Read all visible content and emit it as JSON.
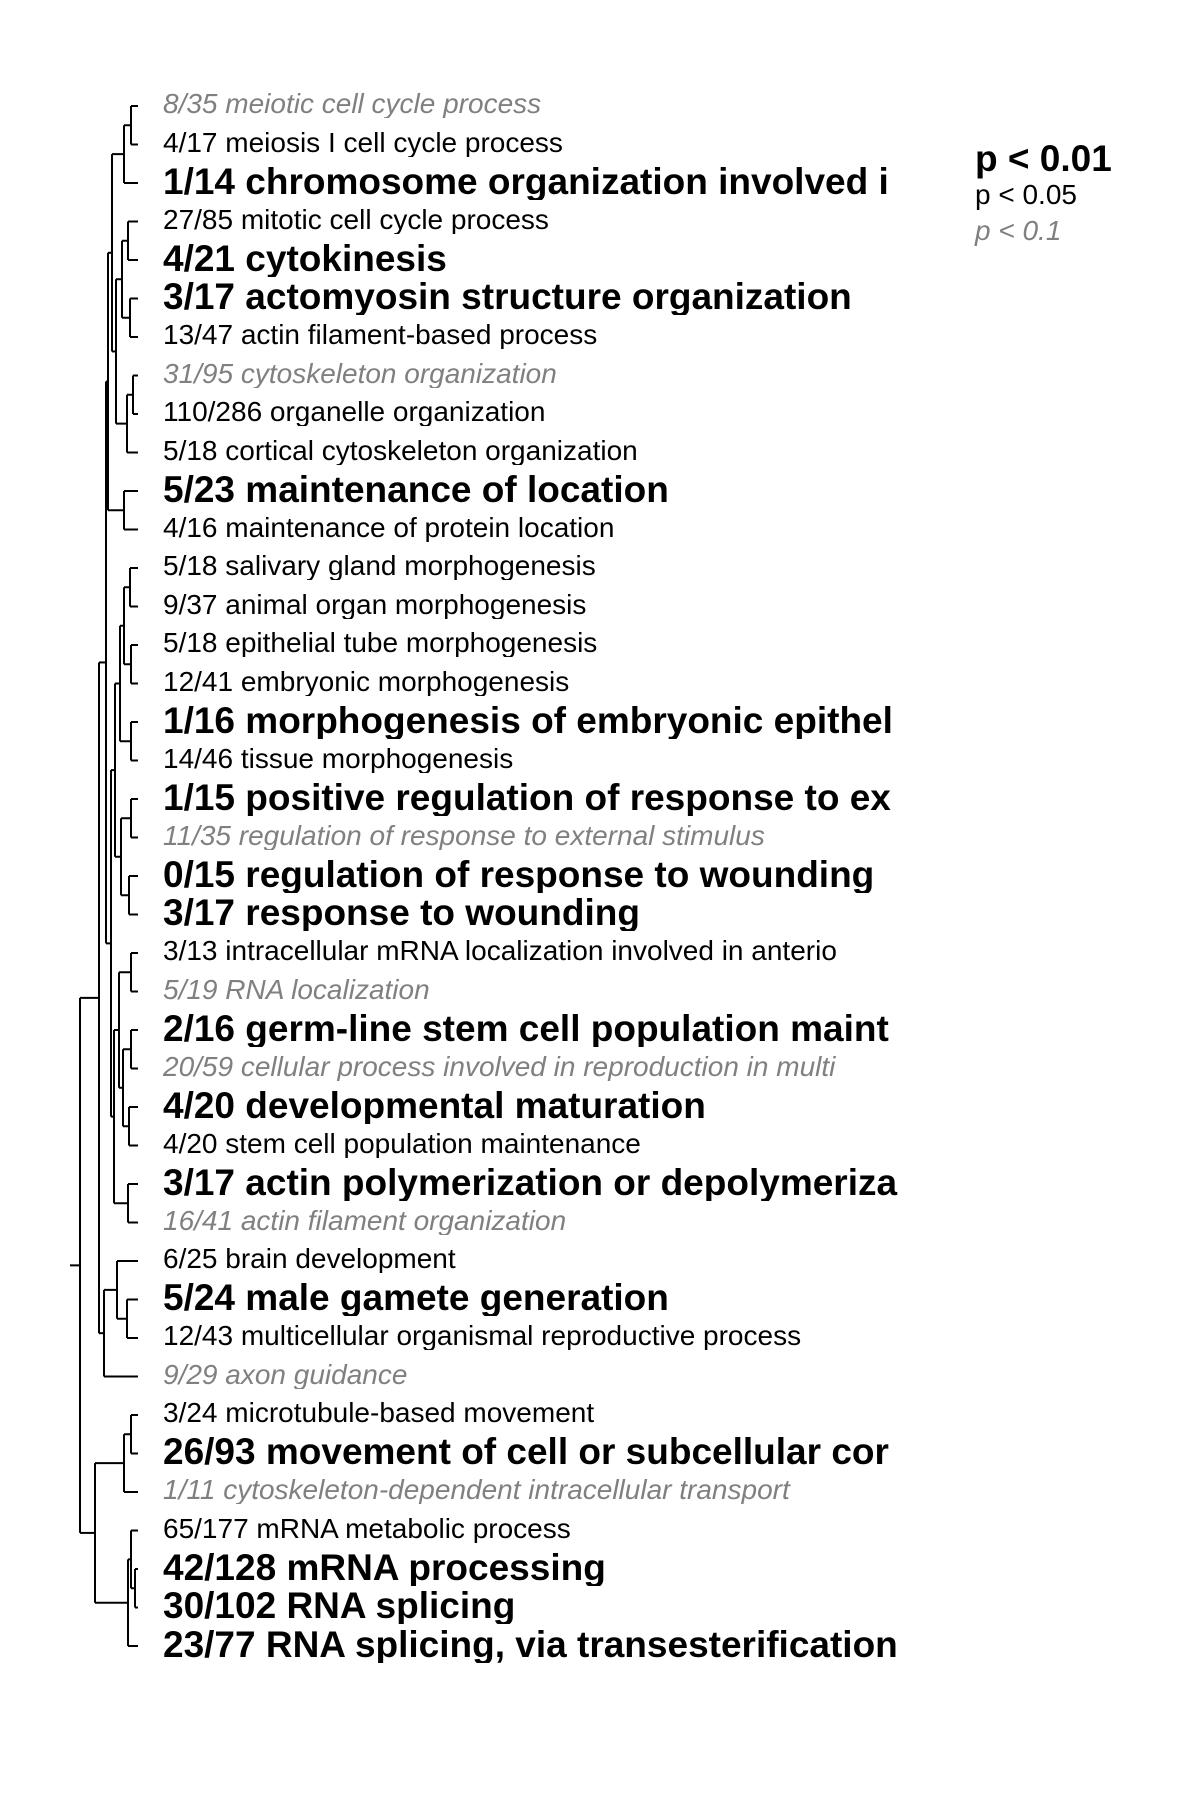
{
  "terms": [
    {
      "label": "8/35 meiotic cell cycle process",
      "sig": 3
    },
    {
      "label": "4/17 meiosis I cell cycle process",
      "sig": 2
    },
    {
      "label": "1/14 chromosome organization involved i",
      "sig": 1
    },
    {
      "label": "27/85 mitotic cell cycle process",
      "sig": 2
    },
    {
      "label": "4/21 cytokinesis",
      "sig": 1
    },
    {
      "label": "3/17 actomyosin structure organization",
      "sig": 1
    },
    {
      "label": "13/47 actin filament-based process",
      "sig": 2
    },
    {
      "label": "31/95 cytoskeleton organization",
      "sig": 3
    },
    {
      "label": "110/286 organelle organization",
      "sig": 2
    },
    {
      "label": "5/18 cortical cytoskeleton organization",
      "sig": 2
    },
    {
      "label": "5/23 maintenance of location",
      "sig": 1
    },
    {
      "label": "4/16 maintenance of protein location",
      "sig": 2
    },
    {
      "label": "5/18 salivary gland morphogenesis",
      "sig": 2
    },
    {
      "label": "9/37 animal organ morphogenesis",
      "sig": 2
    },
    {
      "label": "5/18 epithelial tube morphogenesis",
      "sig": 2
    },
    {
      "label": "12/41 embryonic morphogenesis",
      "sig": 2
    },
    {
      "label": "1/16 morphogenesis of embryonic epithel",
      "sig": 1
    },
    {
      "label": "14/46 tissue morphogenesis",
      "sig": 2
    },
    {
      "label": "1/15 positive regulation of response to ex",
      "sig": 1
    },
    {
      "label": "11/35 regulation of response to external stimulus",
      "sig": 3
    },
    {
      "label": "0/15 regulation of response to wounding",
      "sig": 1
    },
    {
      "label": "3/17 response to wounding",
      "sig": 1
    },
    {
      "label": "3/13 intracellular mRNA localization involved in anterio",
      "sig": 2
    },
    {
      "label": "5/19 RNA localization",
      "sig": 3
    },
    {
      "label": "2/16 germ-line stem cell population maint",
      "sig": 1
    },
    {
      "label": "20/59 cellular process involved in reproduction in multi",
      "sig": 3
    },
    {
      "label": "4/20 developmental maturation",
      "sig": 1
    },
    {
      "label": "4/20 stem cell population maintenance",
      "sig": 2
    },
    {
      "label": "3/17 actin polymerization or depolymeriza",
      "sig": 1
    },
    {
      "label": "16/41 actin filament organization",
      "sig": 3
    },
    {
      "label": "6/25 brain development",
      "sig": 2
    },
    {
      "label": "5/24 male gamete generation",
      "sig": 1
    },
    {
      "label": "12/43 multicellular organismal reproductive process",
      "sig": 2
    },
    {
      "label": "9/29 axon guidance",
      "sig": 3
    },
    {
      "label": "3/24 microtubule-based movement",
      "sig": 2
    },
    {
      "label": "26/93 movement of cell or subcellular cor",
      "sig": 1
    },
    {
      "label": "1/11 cytoskeleton-dependent intracellular transport",
      "sig": 3
    },
    {
      "label": "65/177 mRNA metabolic process",
      "sig": 2
    },
    {
      "label": "42/128 mRNA processing",
      "sig": 1
    },
    {
      "label": "30/102 RNA splicing",
      "sig": 1
    },
    {
      "label": "23/77 RNA splicing, via transesterification",
      "sig": 1
    }
  ],
  "legend": [
    {
      "label": "p < 0.01",
      "sig": 1
    },
    {
      "label": "p < 0.05",
      "sig": 2
    },
    {
      "label": "p < 0.1",
      "sig": 3
    }
  ]
}
